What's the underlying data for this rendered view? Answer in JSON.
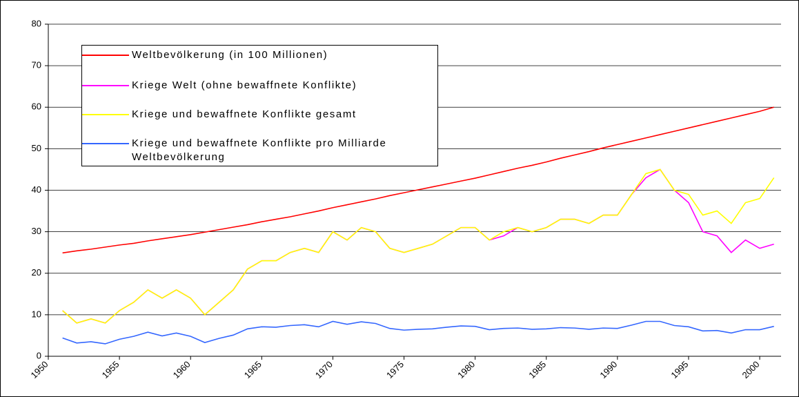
{
  "chart_data": {
    "type": "line",
    "x": [
      1951,
      1952,
      1953,
      1954,
      1955,
      1956,
      1957,
      1958,
      1959,
      1960,
      1961,
      1962,
      1963,
      1964,
      1965,
      1966,
      1967,
      1968,
      1969,
      1970,
      1971,
      1972,
      1973,
      1974,
      1975,
      1976,
      1977,
      1978,
      1979,
      1980,
      1981,
      1982,
      1983,
      1984,
      1985,
      1986,
      1987,
      1988,
      1989,
      1990,
      1991,
      1992,
      1993,
      1994,
      1995,
      1996,
      1997,
      1998,
      1999,
      2000,
      2001
    ],
    "xlim": [
      1950,
      2001.5
    ],
    "xticks": [
      1950,
      1955,
      1960,
      1965,
      1970,
      1975,
      1980,
      1985,
      1990,
      1995,
      2000
    ],
    "ylim": [
      0,
      80
    ],
    "yticks": [
      0,
      10,
      20,
      30,
      40,
      50,
      60,
      70,
      80
    ],
    "grid": true,
    "series": [
      {
        "name": "Weltbevölkerung (in 100 Millionen)",
        "color": "#ff0000",
        "values": [
          24.9,
          25.4,
          25.8,
          26.3,
          26.8,
          27.2,
          27.8,
          28.3,
          28.8,
          29.3,
          29.9,
          30.5,
          31.1,
          31.7,
          32.4,
          33.0,
          33.6,
          34.3,
          35.0,
          35.8,
          36.5,
          37.2,
          37.9,
          38.7,
          39.4,
          40.1,
          40.8,
          41.5,
          42.2,
          42.9,
          43.7,
          44.5,
          45.3,
          46.0,
          46.8,
          47.7,
          48.5,
          49.3,
          50.2,
          51.0,
          51.8,
          52.6,
          53.4,
          54.2,
          55.0,
          55.8,
          56.6,
          57.4,
          58.2,
          59.0,
          60.0
        ]
      },
      {
        "name": "Kriege Welt (ohne bewaffnete Konflikte)",
        "color": "#ff00ff",
        "values": [
          11,
          8,
          9,
          8,
          11,
          13,
          16,
          14,
          16,
          14,
          10,
          13,
          16,
          21,
          23,
          23,
          25,
          26,
          25,
          30,
          28,
          31,
          30,
          26,
          25,
          26,
          27,
          29,
          31,
          31,
          28,
          29,
          31,
          30,
          31,
          33,
          33,
          32,
          34,
          34,
          39,
          43,
          45,
          40,
          37,
          30,
          29,
          25,
          28,
          26,
          27
        ]
      },
      {
        "name": "Kriege und bewaffnete Konflikte gesamt",
        "color": "#ffff00",
        "values": [
          11,
          8,
          9,
          8,
          11,
          13,
          16,
          14,
          16,
          14,
          10,
          13,
          16,
          21,
          23,
          23,
          25,
          26,
          25,
          30,
          28,
          31,
          30,
          26,
          25,
          26,
          27,
          29,
          31,
          31,
          28,
          30,
          31,
          30,
          31,
          33,
          33,
          32,
          34,
          34,
          39,
          44,
          45,
          40,
          39,
          34,
          35,
          32,
          37,
          38,
          43
        ]
      },
      {
        "name": "Kriege und bewaffnete Konflikte pro Milliarde Weltbevölkerung",
        "color": "#3366ff",
        "values": [
          4.4,
          3.2,
          3.5,
          3.0,
          4.1,
          4.8,
          5.8,
          4.9,
          5.6,
          4.8,
          3.3,
          4.3,
          5.1,
          6.6,
          7.1,
          7.0,
          7.4,
          7.6,
          7.1,
          8.4,
          7.7,
          8.3,
          7.9,
          6.7,
          6.3,
          6.5,
          6.6,
          7.0,
          7.3,
          7.2,
          6.4,
          6.7,
          6.8,
          6.5,
          6.6,
          6.9,
          6.8,
          6.5,
          6.8,
          6.7,
          7.5,
          8.4,
          8.4,
          7.4,
          7.1,
          6.1,
          6.2,
          5.6,
          6.4,
          6.4,
          7.2
        ]
      }
    ]
  }
}
